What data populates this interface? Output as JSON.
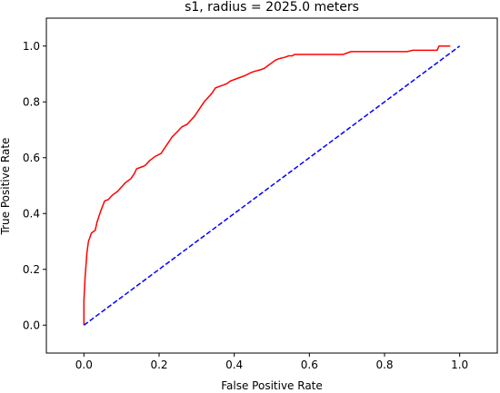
{
  "chart_data": {
    "type": "line",
    "title": "s1, radius = 2025.0 meters",
    "xlabel": "False Positive Rate",
    "ylabel": "True Positive Rate",
    "xlim": [
      -0.1,
      1.1
    ],
    "ylim": [
      -0.1,
      1.1
    ],
    "xticks": [
      "0.0",
      "0.2",
      "0.4",
      "0.6",
      "0.8",
      "1.0"
    ],
    "yticks": [
      "0.0",
      "0.2",
      "0.4",
      "0.6",
      "0.8",
      "1.0"
    ],
    "grid": false,
    "series": [
      {
        "color": "#ff0000",
        "style": "solid",
        "x": [
          0.0,
          0.0,
          0.003,
          0.008,
          0.012,
          0.02,
          0.03,
          0.035,
          0.045,
          0.055,
          0.065,
          0.075,
          0.09,
          0.1,
          0.11,
          0.125,
          0.135,
          0.14,
          0.15,
          0.16,
          0.165,
          0.175,
          0.18,
          0.19,
          0.205,
          0.215,
          0.22,
          0.23,
          0.235,
          0.25,
          0.26,
          0.275,
          0.285,
          0.295,
          0.305,
          0.32,
          0.33,
          0.34,
          0.35,
          0.36,
          0.37,
          0.38,
          0.39,
          0.41,
          0.43,
          0.445,
          0.455,
          0.47,
          0.48,
          0.49,
          0.5,
          0.51,
          0.52,
          0.535,
          0.545,
          0.555,
          0.56,
          0.57,
          0.69,
          0.71,
          0.86,
          0.875,
          0.94,
          0.945,
          0.975
        ],
        "y": [
          0.0,
          0.09,
          0.17,
          0.26,
          0.3,
          0.33,
          0.34,
          0.37,
          0.41,
          0.445,
          0.45,
          0.465,
          0.48,
          0.495,
          0.51,
          0.525,
          0.545,
          0.56,
          0.565,
          0.57,
          0.575,
          0.59,
          0.595,
          0.605,
          0.615,
          0.635,
          0.645,
          0.665,
          0.675,
          0.695,
          0.71,
          0.72,
          0.735,
          0.75,
          0.77,
          0.8,
          0.815,
          0.83,
          0.85,
          0.855,
          0.86,
          0.865,
          0.875,
          0.885,
          0.895,
          0.905,
          0.91,
          0.915,
          0.92,
          0.93,
          0.94,
          0.95,
          0.955,
          0.96,
          0.965,
          0.965,
          0.97,
          0.97,
          0.97,
          0.98,
          0.98,
          0.985,
          0.985,
          1.0,
          1.0
        ]
      },
      {
        "color": "#0000ff",
        "style": "dashed",
        "x": [
          0.0,
          1.0
        ],
        "y": [
          0.0,
          1.0
        ]
      }
    ]
  }
}
